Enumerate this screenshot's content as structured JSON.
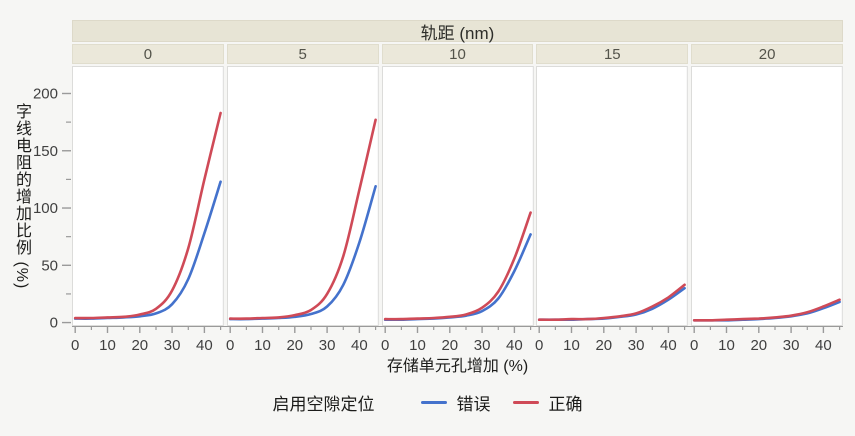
{
  "figure": {
    "background": "#f6f6f4",
    "strip_background": "#e7e4d5",
    "cell_background": "#ebe8da",
    "panel_background": "#ffffff",
    "panel_border": "#dcdcda",
    "axis_color": "#9a9a9a",
    "tick_label_color": "#404040"
  },
  "chart_data": {
    "type": "line",
    "facet_title": "轨距 (nm)",
    "xlabel": "存储单元孔增加 (%)",
    "ylabel": "字线电阻的增加比例 (%)",
    "x": [
      0,
      5,
      10,
      15,
      20,
      25,
      30,
      35,
      40,
      45
    ],
    "xlim": [
      -1,
      46
    ],
    "ylim": [
      -3,
      224
    ],
    "xticks_major": [
      0,
      10,
      20,
      30,
      40
    ],
    "xtick_labels": [
      "0",
      "10",
      "20",
      "30",
      "40"
    ],
    "xticks_minor": [
      5,
      15,
      25,
      35,
      45
    ],
    "yticks_major": [
      0,
      50,
      100,
      150,
      200
    ],
    "ytick_labels": [
      "0",
      "50",
      "100",
      "150",
      "200"
    ],
    "yticks_minor": [
      25,
      75,
      125,
      175
    ],
    "grid": false,
    "panels": [
      {
        "label": "0",
        "series": [
          {
            "name": "错误",
            "color": "#4472cc",
            "values": [
              3.5,
              3.5,
              4,
              4.5,
              5.5,
              8,
              16,
              38,
              78,
              123
            ]
          },
          {
            "name": "正确",
            "color": "#cf4a57",
            "values": [
              4,
              4,
              4.5,
              5,
              7,
              12,
              28,
              65,
              125,
              183
            ]
          }
        ]
      },
      {
        "label": "5",
        "series": [
          {
            "name": "错误",
            "color": "#4472cc",
            "values": [
              3,
              3,
              3.5,
              4,
              5,
              7.5,
              14,
              33,
              70,
              119
            ]
          },
          {
            "name": "正确",
            "color": "#cf4a57",
            "values": [
              3.5,
              3.5,
              4,
              4.5,
              6.5,
              11,
              25,
              58,
              116,
              177
            ]
          }
        ]
      },
      {
        "label": "10",
        "series": [
          {
            "name": "错误",
            "color": "#4472cc",
            "values": [
              2.5,
              2.5,
              3,
              3.5,
              4.5,
              6,
              10,
              21,
              45,
              77
            ]
          },
          {
            "name": "正确",
            "color": "#cf4a57",
            "values": [
              3,
              3,
              3.5,
              4,
              5,
              7,
              13,
              27,
              56,
              96
            ]
          }
        ]
      },
      {
        "label": "15",
        "series": [
          {
            "name": "错误",
            "color": "#4472cc",
            "values": [
              2.5,
              2.5,
              2.5,
              3,
              3.5,
              5,
              7,
              12,
              20,
              30
            ]
          },
          {
            "name": "正确",
            "color": "#cf4a57",
            "values": [
              2.5,
              2.5,
              3,
              3,
              4,
              5.5,
              8,
              14,
              22,
              33
            ]
          }
        ]
      },
      {
        "label": "20",
        "series": [
          {
            "name": "错误",
            "color": "#4472cc",
            "values": [
              2,
              2,
              2,
              2.5,
              3,
              4,
              5.5,
              8,
              12.5,
              18
            ]
          },
          {
            "name": "正确",
            "color": "#cf4a57",
            "values": [
              2,
              2,
              2.5,
              3,
              3.5,
              4.5,
              6,
              9,
              14,
              20
            ]
          }
        ]
      }
    ],
    "legend": {
      "title": "启用空隙定位",
      "position": "bottom",
      "items": [
        {
          "label": "错误",
          "color": "#4472cc"
        },
        {
          "label": "正确",
          "color": "#cf4a57"
        }
      ]
    }
  }
}
